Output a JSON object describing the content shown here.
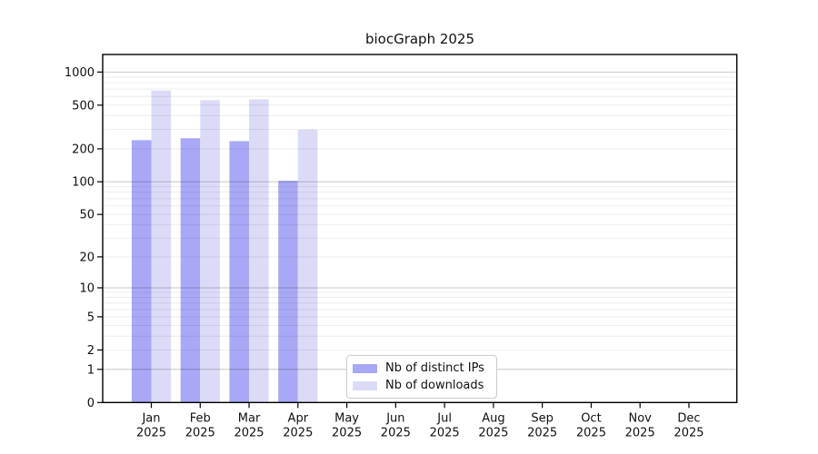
{
  "page": {
    "background": "#ffffff"
  },
  "chart_data": {
    "type": "bar",
    "title": "biocGraph 2025",
    "x": {
      "categories": [
        "Jan",
        "Feb",
        "Mar",
        "Apr",
        "May",
        "Jun",
        "Jul",
        "Aug",
        "Sep",
        "Oct",
        "Nov",
        "Dec"
      ],
      "sub_label": "2025"
    },
    "series": [
      {
        "name": "Nb of distinct IPs",
        "color": "#a8a8f6",
        "values": [
          240,
          250,
          235,
          102,
          null,
          null,
          null,
          null,
          null,
          null,
          null,
          null
        ]
      },
      {
        "name": "Nb of downloads",
        "color": "#dbdbf8",
        "values": [
          680,
          555,
          565,
          300,
          null,
          null,
          null,
          null,
          null,
          null,
          null,
          null
        ]
      }
    ],
    "y_axis": {
      "scale": "log1p",
      "ticks": [
        0,
        1,
        2,
        5,
        10,
        20,
        50,
        100,
        200,
        500,
        1000
      ],
      "range_top_value": 1450,
      "grid": "horizontal, minor lines at 2-9 per decade"
    },
    "legend": {
      "position": "bottom-center-inside",
      "entries": [
        "Nb of distinct IPs",
        "Nb of downloads"
      ]
    }
  },
  "colors": {
    "grid_major": "rgba(0,0,0,0.22)",
    "grid_minor": "rgba(0,0,0,0.07)",
    "axis": "#000000",
    "text": "#111111",
    "legend_border": "#cccccc",
    "background": "#ffffff"
  }
}
